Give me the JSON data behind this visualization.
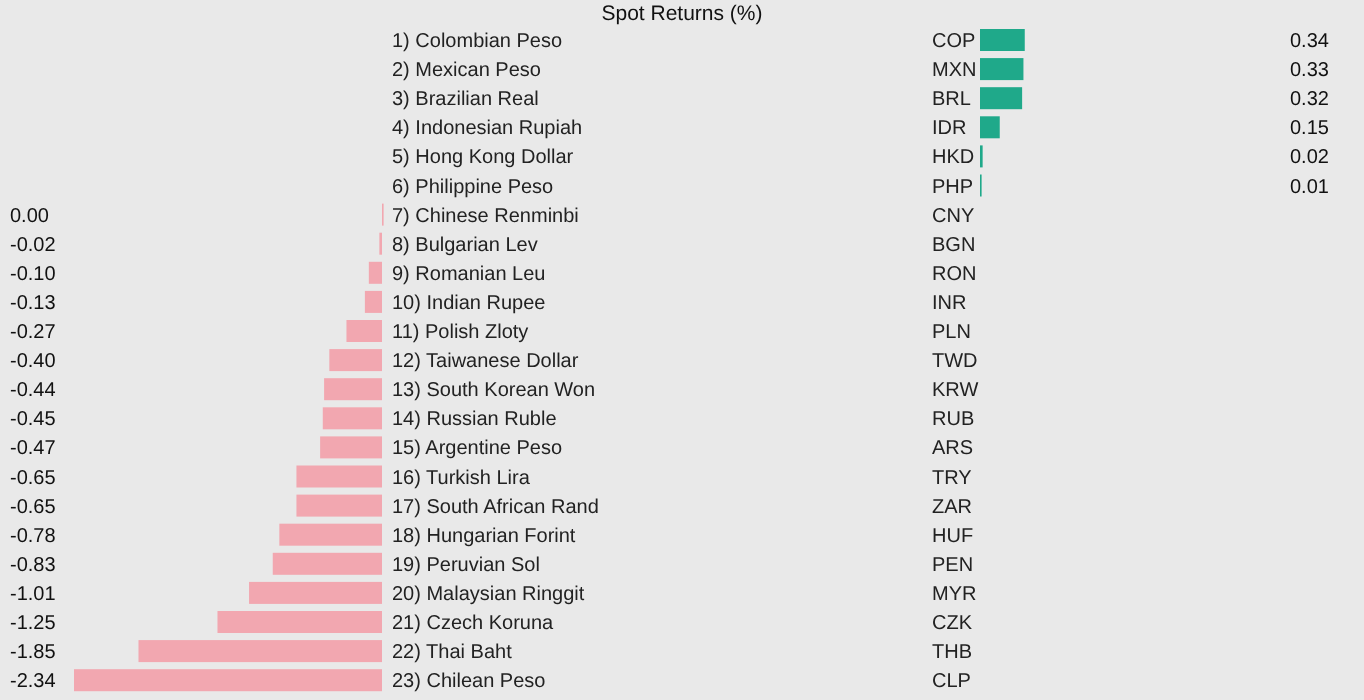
{
  "chart_data": [
    {
      "type": "bar",
      "orientation": "horizontal",
      "title": "Spot Returns (%)",
      "categories": [
        "1) Colombian Peso",
        "2) Mexican Peso",
        "3) Brazilian Real",
        "4) Indonesian Rupiah",
        "5) Hong Kong Dollar",
        "6) Philippine Peso",
        "7) Chinese Renminbi",
        "8) Bulgarian Lev",
        "9) Romanian Leu",
        "10) Indian Rupee",
        "11) Polish Zloty",
        "12) Taiwanese Dollar",
        "13) South Korean Won",
        "14) Russian Ruble",
        "15) Argentine Peso",
        "16) Turkish Lira",
        "17) South African Rand",
        "18) Hungarian Forint",
        "19) Peruvian Sol",
        "20) Malaysian Ringgit",
        "21) Czech Koruna",
        "22) Thai Baht",
        "23) Chilean Peso"
      ],
      "values": [
        null,
        null,
        null,
        null,
        null,
        null,
        0.0,
        -0.02,
        -0.1,
        -0.13,
        -0.27,
        -0.4,
        -0.44,
        -0.45,
        -0.47,
        -0.65,
        -0.65,
        -0.78,
        -0.83,
        -1.01,
        -1.25,
        -1.85,
        -2.34
      ],
      "value_labels": [
        null,
        null,
        null,
        null,
        null,
        null,
        "0.00",
        "-0.02",
        "-0.10",
        "-0.13",
        "-0.27",
        "-0.40",
        "-0.44",
        "-0.45",
        "-0.47",
        "-0.65",
        "-0.65",
        "-0.78",
        "-0.83",
        "-1.01",
        "-1.25",
        "-1.85",
        "-2.34"
      ],
      "color": "#f2a7b0"
    },
    {
      "type": "bar",
      "orientation": "horizontal",
      "categories": [
        "COP",
        "MXN",
        "BRL",
        "IDR",
        "HKD",
        "PHP",
        "CNY",
        "BGN",
        "RON",
        "INR",
        "PLN",
        "TWD",
        "KRW",
        "RUB",
        "ARS",
        "TRY",
        "ZAR",
        "HUF",
        "PEN",
        "MYR",
        "CZK",
        "THB",
        "CLP"
      ],
      "values": [
        0.34,
        0.33,
        0.32,
        0.15,
        0.02,
        0.01,
        null,
        null,
        null,
        null,
        null,
        null,
        null,
        null,
        null,
        null,
        null,
        null,
        null,
        null,
        null,
        null,
        null
      ],
      "value_labels": [
        "0.34",
        "0.33",
        "0.32",
        "0.15",
        "0.02",
        "0.01",
        null,
        null,
        null,
        null,
        null,
        null,
        null,
        null,
        null,
        null,
        null,
        null,
        null,
        null,
        null,
        null,
        null
      ],
      "color": "#1fa98a"
    }
  ]
}
